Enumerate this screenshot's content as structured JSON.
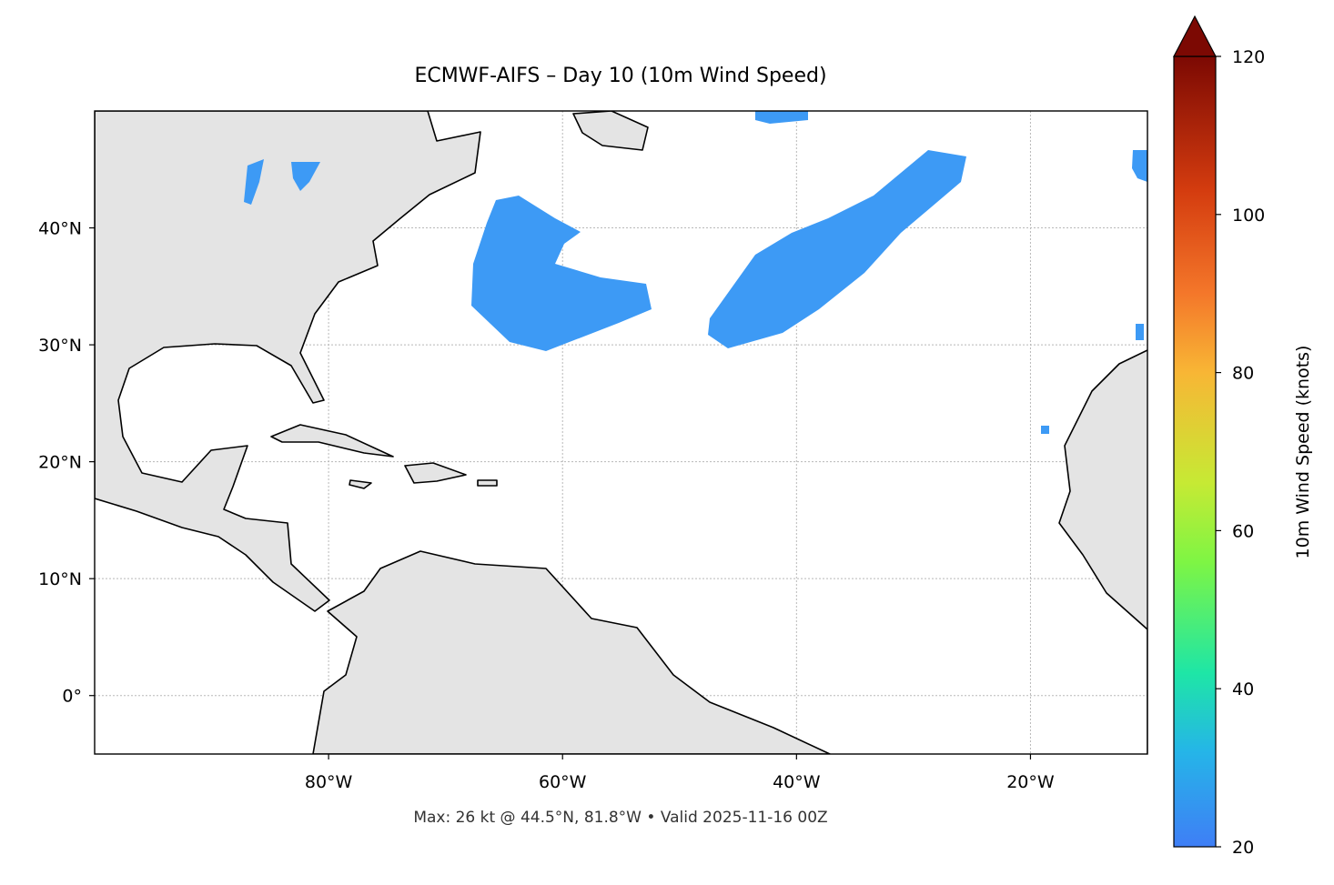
{
  "chart_data": {
    "type": "map",
    "title": "ECMWF-AIFS – Day 10 (10m Wind Speed)",
    "footer": "Max: 26 kt @ 44.5°N, 81.8°W • Valid 2025-11-16 00Z",
    "xlim": [
      -100,
      -10
    ],
    "ylim": [
      -5,
      50
    ],
    "xticks": [
      {
        "value": -80,
        "label": "80°W"
      },
      {
        "value": -60,
        "label": "60°W"
      },
      {
        "value": -40,
        "label": "40°W"
      },
      {
        "value": -20,
        "label": "20°W"
      }
    ],
    "yticks": [
      {
        "value": 0,
        "label": "0°"
      },
      {
        "value": 10,
        "label": "10°N"
      },
      {
        "value": 20,
        "label": "20°N"
      },
      {
        "value": 30,
        "label": "30°N"
      },
      {
        "value": 40,
        "label": "40°N"
      }
    ],
    "grid": true,
    "colorbar": {
      "label": "10m Wind Speed (knots)",
      "lim": [
        20,
        120
      ],
      "ticks": [
        20,
        40,
        60,
        80,
        100,
        120
      ]
    }
  }
}
